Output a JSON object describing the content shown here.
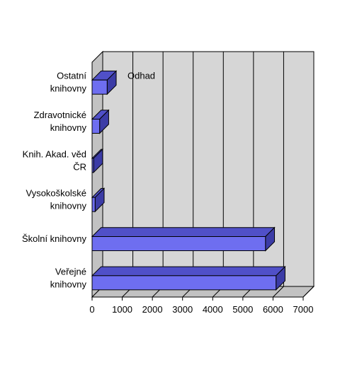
{
  "chart_data": {
    "type": "bar",
    "orientation": "horizontal",
    "three_d": true,
    "categories": [
      [
        "Ostatní",
        "knihovny"
      ],
      [
        "Zdravotnické",
        "knihovny"
      ],
      [
        "Knih. Akad. věd",
        "ČR"
      ],
      [
        "Vysokoškolské",
        "knihovny"
      ],
      [
        "Školní knihovny"
      ],
      [
        "Veřejné",
        "knihovny"
      ]
    ],
    "values": [
      500,
      250,
      50,
      100,
      5750,
      6100
    ],
    "annotation": "Odhad",
    "annotation_category": 0,
    "xlim": [
      0,
      7000
    ],
    "xticks": [
      "0",
      "1000",
      "2000",
      "3000",
      "4000",
      "5000",
      "6000",
      "7000"
    ],
    "grid": true,
    "colors": {
      "bar_front": "#6e6ef0",
      "bar_top": "#5050c8",
      "bar_side": "#3c3ca6",
      "wall": "#d6d6d6",
      "floor": "#c2c2c2",
      "grid": "#000000"
    }
  }
}
